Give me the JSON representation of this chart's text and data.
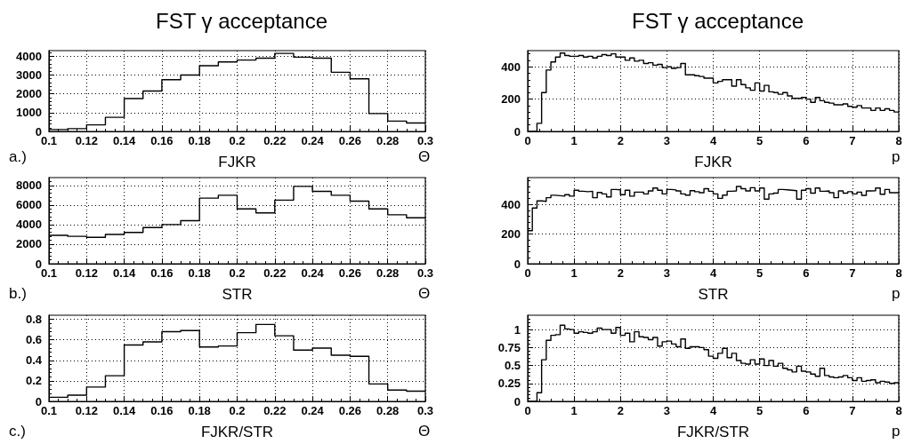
{
  "chart_data": [
    {
      "type": "histogram",
      "title": "FST γ acceptance",
      "xlabel": "FJKR",
      "annotations": [
        "a.)",
        "Θ"
      ],
      "color": "#000000",
      "grid": true,
      "bins": [
        0.1,
        0.11,
        0.12,
        0.13,
        0.14,
        0.15,
        0.16,
        0.17,
        0.18,
        0.19,
        0.2,
        0.21,
        0.22,
        0.23,
        0.24,
        0.25,
        0.26,
        0.27,
        0.28,
        0.29,
        0.3
      ],
      "values": [
        100,
        150,
        350,
        750,
        1750,
        2150,
        2750,
        3000,
        3500,
        3700,
        3800,
        3900,
        4150,
        3950,
        3900,
        3150,
        2800,
        950,
        550,
        450
      ],
      "xlim": [
        0.1,
        0.3
      ],
      "xticks": [
        0.1,
        0.12,
        0.14,
        0.16,
        0.18,
        0.2,
        0.22,
        0.24,
        0.26,
        0.28,
        0.3
      ],
      "ylim": [
        0,
        4300
      ],
      "yticks": [
        0,
        1000,
        2000,
        3000,
        4000
      ]
    },
    {
      "type": "histogram",
      "xlabel": "STR",
      "annotations": [
        "b.)",
        "Θ"
      ],
      "color": "#000000",
      "grid": true,
      "bins": [
        0.1,
        0.11,
        0.12,
        0.13,
        0.14,
        0.15,
        0.16,
        0.17,
        0.18,
        0.19,
        0.2,
        0.21,
        0.22,
        0.23,
        0.24,
        0.25,
        0.26,
        0.27,
        0.28,
        0.29,
        0.3
      ],
      "values": [
        2900,
        2800,
        2700,
        3000,
        3200,
        3700,
        4000,
        4400,
        6700,
        7000,
        5600,
        5200,
        6500,
        7900,
        7400,
        7000,
        6400,
        5600,
        5000,
        4700
      ],
      "xlim": [
        0.1,
        0.3
      ],
      "xticks": [
        0.1,
        0.12,
        0.14,
        0.16,
        0.18,
        0.2,
        0.22,
        0.24,
        0.26,
        0.28,
        0.3
      ],
      "ylim": [
        0,
        8800
      ],
      "yticks": [
        0,
        2000,
        4000,
        6000,
        8000
      ]
    },
    {
      "type": "histogram",
      "xlabel": "FJKR/STR",
      "annotations": [
        "c.)",
        "Θ"
      ],
      "color": "#000000",
      "grid": true,
      "bins": [
        0.1,
        0.11,
        0.12,
        0.13,
        0.14,
        0.15,
        0.16,
        0.17,
        0.18,
        0.19,
        0.2,
        0.21,
        0.22,
        0.23,
        0.24,
        0.25,
        0.26,
        0.27,
        0.28,
        0.29,
        0.3
      ],
      "values": [
        0.04,
        0.06,
        0.14,
        0.25,
        0.55,
        0.58,
        0.68,
        0.69,
        0.53,
        0.54,
        0.67,
        0.75,
        0.64,
        0.5,
        0.52,
        0.45,
        0.44,
        0.17,
        0.11,
        0.1
      ],
      "xlim": [
        0.1,
        0.3
      ],
      "xticks": [
        0.1,
        0.12,
        0.14,
        0.16,
        0.18,
        0.2,
        0.22,
        0.24,
        0.26,
        0.28,
        0.3
      ],
      "ylim": [
        0,
        0.84
      ],
      "yticks": [
        0,
        0.2,
        0.4,
        0.6,
        0.8
      ]
    },
    {
      "type": "histogram",
      "title": "FST γ acceptance",
      "xlabel": "FJKR",
      "annotations": [
        "p"
      ],
      "color": "#000000",
      "grid": true,
      "bins": [
        0,
        0.1,
        0.2,
        0.3,
        0.4,
        0.5,
        0.6,
        0.7,
        0.8,
        0.9,
        1,
        1.1,
        1.2,
        1.3,
        1.4,
        1.5,
        1.6,
        1.7,
        1.8,
        1.9,
        2,
        2.1,
        2.2,
        2.3,
        2.4,
        2.5,
        2.6,
        2.7,
        2.8,
        2.9,
        3,
        3.1,
        3.2,
        3.3,
        3.4,
        3.5,
        3.6,
        3.7,
        3.8,
        3.9,
        4,
        4.1,
        4.2,
        4.3,
        4.4,
        4.5,
        4.6,
        4.7,
        4.8,
        4.9,
        5,
        5.1,
        5.2,
        5.3,
        5.4,
        5.5,
        5.6,
        5.7,
        5.8,
        5.9,
        6,
        6.1,
        6.2,
        6.3,
        6.4,
        6.5,
        6.6,
        6.7,
        6.8,
        6.9,
        7,
        7.1,
        7.2,
        7.3,
        7.4,
        7.5,
        7.6,
        7.7,
        7.8,
        7.9,
        8
      ],
      "values": [
        0,
        0,
        50,
        240,
        380,
        430,
        460,
        485,
        470,
        465,
        465,
        470,
        460,
        465,
        455,
        465,
        475,
        470,
        480,
        460,
        460,
        440,
        455,
        435,
        440,
        420,
        425,
        410,
        415,
        395,
        400,
        390,
        395,
        420,
        350,
        350,
        345,
        340,
        330,
        330,
        300,
        310,
        320,
        320,
        280,
        320,
        290,
        270,
        255,
        300,
        250,
        285,
        245,
        240,
        230,
        240,
        220,
        205,
        205,
        210,
        200,
        180,
        210,
        190,
        180,
        175,
        165,
        165,
        170,
        155,
        150,
        160,
        145,
        145,
        130,
        145,
        130,
        140,
        130,
        120
      ],
      "xlim": [
        0,
        8
      ],
      "xticks": [
        0,
        1,
        2,
        3,
        4,
        5,
        6,
        7,
        8
      ],
      "ylim": [
        0,
        500
      ],
      "yticks": [
        0,
        200,
        400
      ]
    },
    {
      "type": "histogram",
      "xlabel": "STR",
      "annotations": [
        "p"
      ],
      "color": "#000000",
      "grid": true,
      "bins": [
        0,
        0.1,
        0.2,
        0.3,
        0.4,
        0.5,
        0.6,
        0.7,
        0.8,
        0.9,
        1,
        1.1,
        1.2,
        1.3,
        1.4,
        1.5,
        1.6,
        1.7,
        1.8,
        1.9,
        2,
        2.1,
        2.2,
        2.3,
        2.4,
        2.5,
        2.6,
        2.7,
        2.8,
        2.9,
        3,
        3.1,
        3.2,
        3.3,
        3.4,
        3.5,
        3.6,
        3.7,
        3.8,
        3.9,
        4,
        4.1,
        4.2,
        4.3,
        4.4,
        4.5,
        4.6,
        4.7,
        4.8,
        4.9,
        5,
        5.1,
        5.2,
        5.3,
        5.4,
        5.5,
        5.6,
        5.7,
        5.8,
        5.9,
        6,
        6.1,
        6.2,
        6.3,
        6.4,
        6.5,
        6.6,
        6.7,
        6.8,
        6.9,
        7,
        7.1,
        7.2,
        7.3,
        7.4,
        7.5,
        7.6,
        7.7,
        7.8,
        7.9,
        8
      ],
      "values": [
        223,
        375,
        423,
        420,
        445,
        461,
        458,
        455,
        465,
        455,
        495,
        488,
        485,
        488,
        445,
        480,
        470,
        450,
        500,
        498,
        465,
        495,
        455,
        482,
        482,
        470,
        490,
        510,
        495,
        470,
        500,
        497,
        490,
        470,
        462,
        492,
        485,
        478,
        505,
        488,
        470,
        440,
        462,
        488,
        490,
        520,
        505,
        490,
        512,
        490,
        510,
        435,
        470,
        475,
        500,
        498,
        495,
        492,
        435,
        495,
        505,
        475,
        510,
        488,
        490,
        478,
        445,
        490,
        475,
        485,
        470,
        482,
        460,
        490,
        492,
        510,
        468,
        500,
        478,
        478
      ],
      "xlim": [
        0,
        8
      ],
      "xticks": [
        0,
        1,
        2,
        3,
        4,
        5,
        6,
        7,
        8
      ],
      "ylim": [
        0,
        580
      ],
      "yticks": [
        0,
        200,
        400
      ]
    },
    {
      "type": "histogram",
      "xlabel": "FJKR/STR",
      "annotations": [
        "p"
      ],
      "color": "#000000",
      "grid": true,
      "bins": [
        0,
        0.1,
        0.2,
        0.3,
        0.4,
        0.5,
        0.6,
        0.7,
        0.8,
        0.9,
        1,
        1.1,
        1.2,
        1.3,
        1.4,
        1.5,
        1.6,
        1.7,
        1.8,
        1.9,
        2,
        2.1,
        2.2,
        2.3,
        2.4,
        2.5,
        2.6,
        2.7,
        2.8,
        2.9,
        3,
        3.1,
        3.2,
        3.3,
        3.4,
        3.5,
        3.6,
        3.7,
        3.8,
        3.9,
        4,
        4.1,
        4.2,
        4.3,
        4.4,
        4.5,
        4.6,
        4.7,
        4.8,
        4.9,
        5,
        5.1,
        5.2,
        5.3,
        5.4,
        5.5,
        5.6,
        5.7,
        5.8,
        5.9,
        6,
        6.1,
        6.2,
        6.3,
        6.4,
        6.5,
        6.6,
        6.7,
        6.8,
        6.9,
        7,
        7.1,
        7.2,
        7.3,
        7.4,
        7.5,
        7.6,
        7.7,
        7.8,
        7.9,
        8
      ],
      "values": [
        0,
        0,
        0.12,
        0.58,
        0.85,
        0.92,
        0.93,
        1.06,
        1.01,
        1,
        0.95,
        0.97,
        0.96,
        0.95,
        0.97,
        1.02,
        1,
        1,
        0.95,
        1.03,
        0.92,
        0.95,
        0.83,
        0.97,
        0.9,
        0.89,
        0.86,
        0.89,
        0.77,
        0.83,
        0.84,
        0.8,
        0.76,
        0.87,
        0.74,
        0.76,
        0.76,
        0.75,
        0.72,
        0.63,
        0.6,
        0.67,
        0.74,
        0.61,
        0.67,
        0.57,
        0.53,
        0.52,
        0.58,
        0.52,
        0.59,
        0.5,
        0.57,
        0.49,
        0.53,
        0.46,
        0.44,
        0.41,
        0.49,
        0.42,
        0.41,
        0.38,
        0.35,
        0.46,
        0.36,
        0.34,
        0.33,
        0.34,
        0.36,
        0.33,
        0.29,
        0.33,
        0.28,
        0.29,
        0.3,
        0.26,
        0.28,
        0.27,
        0.25,
        0.26
      ],
      "xlim": [
        0,
        8
      ],
      "xticks": [
        0,
        1,
        2,
        3,
        4,
        5,
        6,
        7,
        8
      ],
      "ylim": [
        0,
        1.2
      ],
      "yticks": [
        0,
        0.25,
        0.5,
        0.75,
        1
      ]
    }
  ]
}
